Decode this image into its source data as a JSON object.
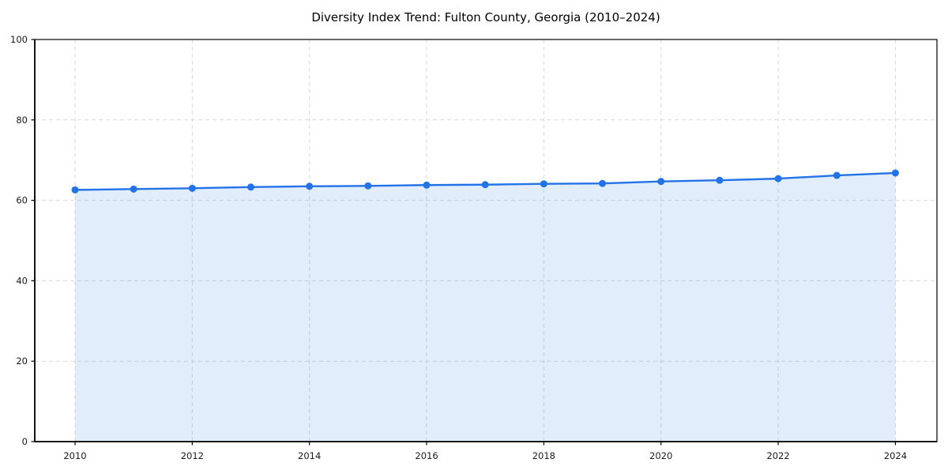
{
  "chart_data": {
    "type": "line",
    "title": "Diversity Index Trend: Fulton County, Georgia (2010–2024)",
    "xlabel": "",
    "ylabel": "",
    "x": [
      2010,
      2011,
      2012,
      2013,
      2014,
      2015,
      2016,
      2017,
      2018,
      2019,
      2020,
      2021,
      2022,
      2023,
      2024
    ],
    "series": [
      {
        "name": "Diversity Index",
        "values": [
          62.6,
          62.8,
          63.0,
          63.3,
          63.5,
          63.6,
          63.8,
          63.9,
          64.1,
          64.2,
          64.7,
          65.0,
          65.4,
          66.2,
          66.8
        ]
      }
    ],
    "ylim": [
      0,
      100
    ],
    "yticks": [
      0,
      20,
      40,
      60,
      80,
      100
    ],
    "xticks": [
      2010,
      2012,
      2014,
      2016,
      2018,
      2020,
      2022,
      2024
    ],
    "grid": "dashed",
    "legend_position": "none",
    "colors": {
      "line": "#2272e8",
      "marker": "#2272e8",
      "fill": "#2272e8",
      "fill_opacity": 0.13,
      "gridline": "#d9d9d9",
      "spine": "#000000",
      "tick_text": "#1a1a1a",
      "background": "#ffffff"
    }
  }
}
